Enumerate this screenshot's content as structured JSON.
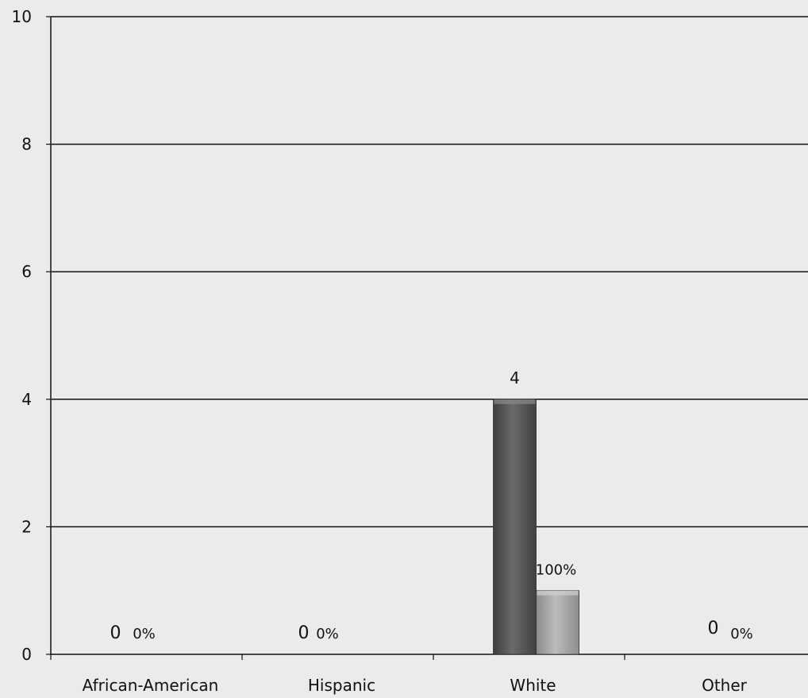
{
  "chart_data": {
    "type": "bar",
    "categories": [
      "African-American",
      "Hispanic",
      "White",
      "Other"
    ],
    "series": [
      {
        "values": [
          0,
          0,
          4,
          0
        ],
        "color": "#5a5a5a",
        "labels": [
          "0",
          "0",
          "4",
          "0"
        ]
      },
      {
        "values": [
          0,
          0,
          1,
          0
        ],
        "color": "#a8a8a8",
        "labels": [
          "0%",
          "0%",
          "100%",
          "0%"
        ]
      }
    ],
    "ylim": [
      0,
      10
    ],
    "yticks": [
      "0",
      "2",
      "4",
      "6",
      "8",
      "10"
    ],
    "grid": true,
    "legend": "none"
  },
  "colors": {
    "background": "#ebebea",
    "gridline": "#111111",
    "bar_count": "#5a5a5a",
    "bar_percent": "#a8a8a8"
  }
}
